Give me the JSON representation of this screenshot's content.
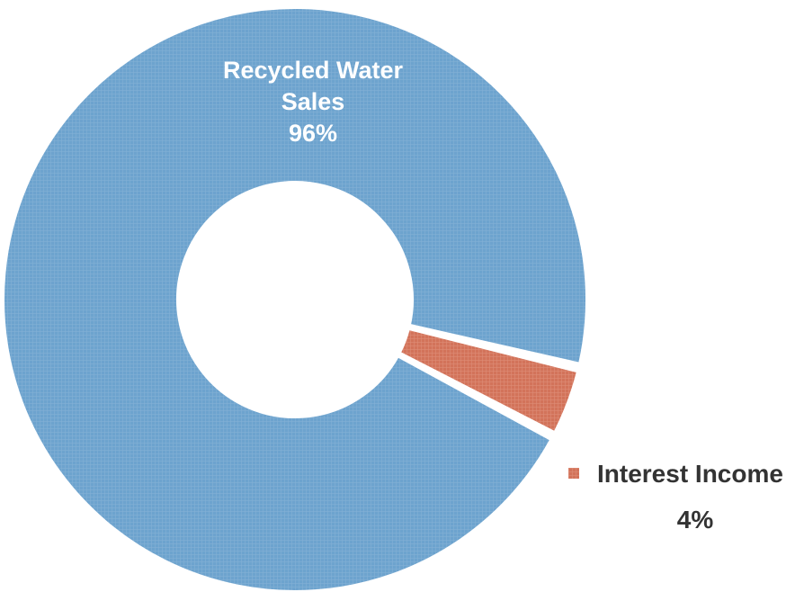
{
  "chart_data": {
    "type": "pie",
    "variant": "donut",
    "title": "",
    "slices": [
      {
        "label": "Recycled Water Sales",
        "label_lines": [
          "Recycled Water",
          "Sales"
        ],
        "value": 96,
        "display": "96%",
        "color": "#6da3ce"
      },
      {
        "label": "Interest Income",
        "label_lines": [
          "Interest Income"
        ],
        "value": 4,
        "display": "4%",
        "color": "#d2735a"
      }
    ],
    "legend": "none"
  }
}
